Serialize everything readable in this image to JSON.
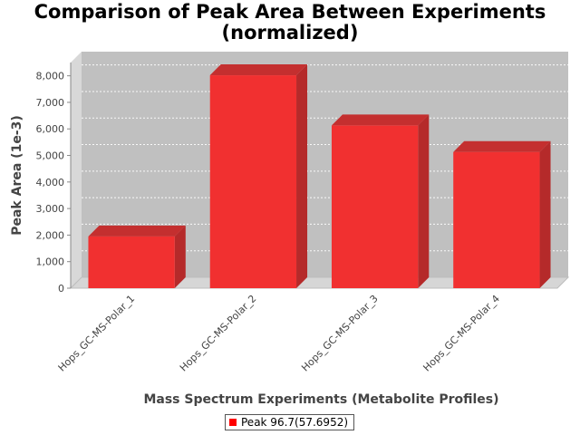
{
  "chart_data": {
    "type": "bar",
    "title_lines": [
      "Comparison of Peak Area Between Experiments",
      "(normalized)"
    ],
    "xlabel": "Mass Spectrum Experiments (Metabolite Profiles)",
    "ylabel": "Peak Area (1e-3)",
    "categories": [
      "Hops_GC-MS-Polar_1",
      "Hops_GC-MS-Polar_2",
      "Hops_GC-MS-Polar_3",
      "Hops_GC-MS-Polar_4"
    ],
    "series": [
      {
        "name": "Peak 96.7(57.6952)",
        "values": [
          1950,
          8020,
          6130,
          5130
        ],
        "color": "#ff0000"
      }
    ],
    "ylim": [
      0,
      8500
    ],
    "yticks": [
      0,
      1000,
      2000,
      3000,
      4000,
      5000,
      6000,
      7000,
      8000
    ],
    "ytick_labels": [
      "0",
      "1,000",
      "2,000",
      "3,000",
      "4,000",
      "5,000",
      "6,000",
      "7,000",
      "8,000"
    ],
    "grid": true,
    "legend_position": "bottom"
  }
}
